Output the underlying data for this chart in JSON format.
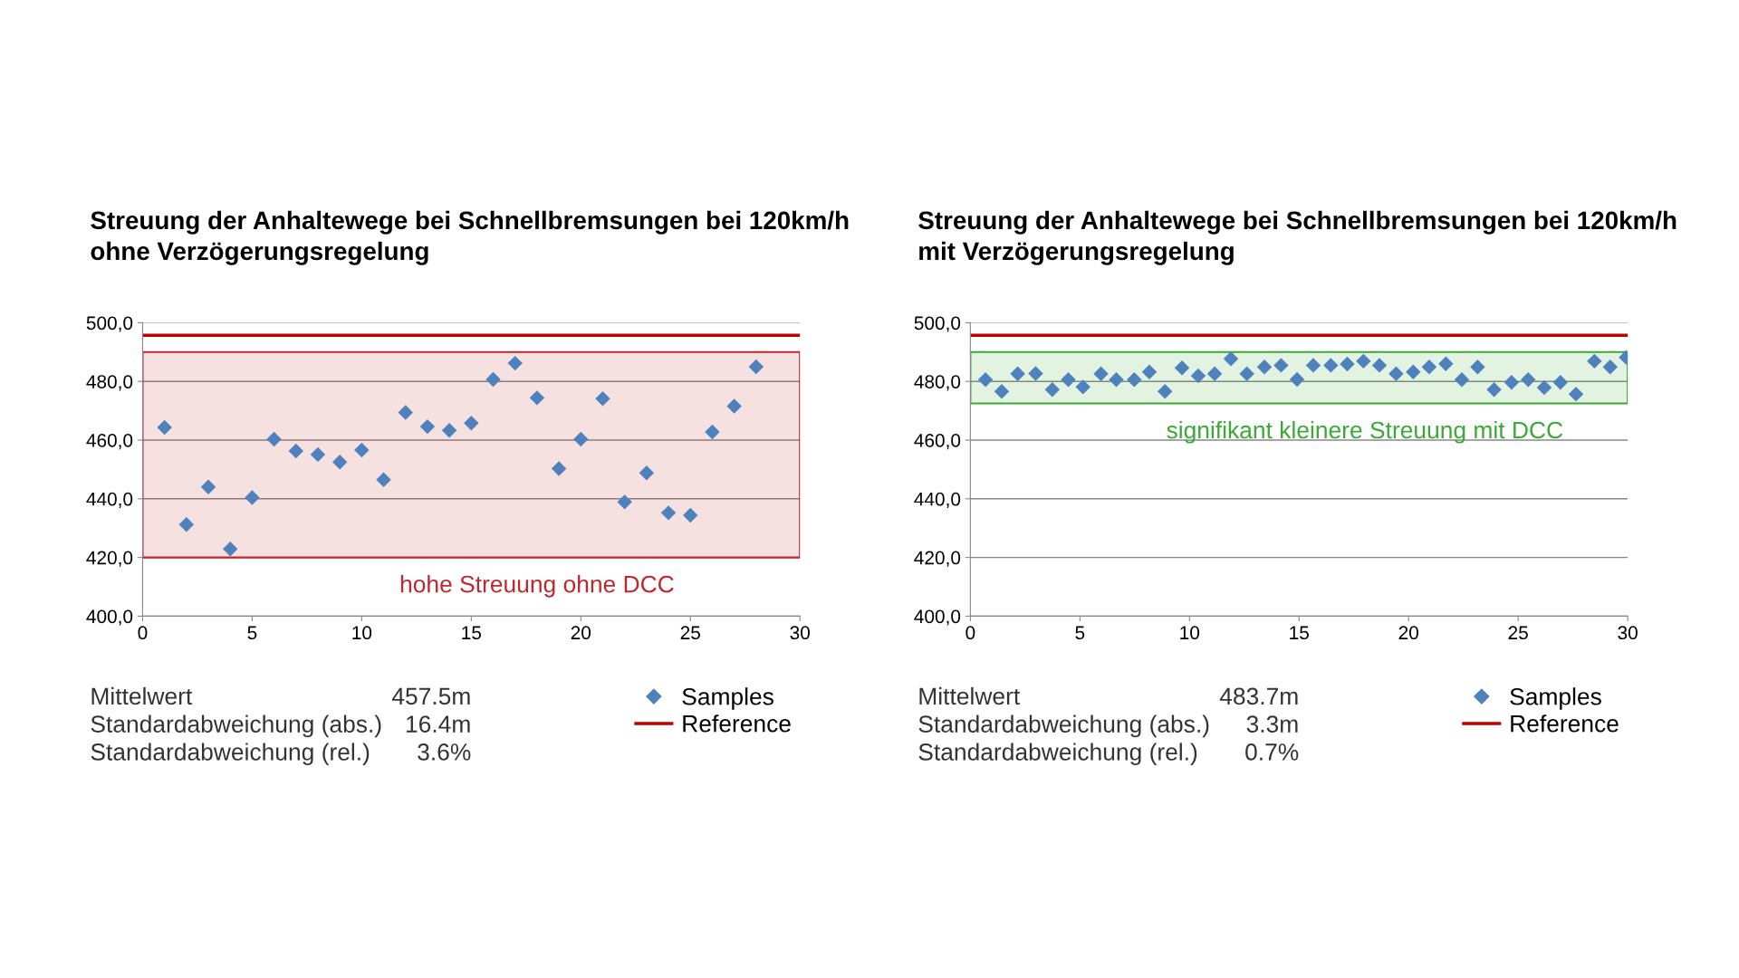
{
  "chart_data": [
    {
      "type": "scatter",
      "title": "Streuung der Anhaltewege bei Schnellbremsungen bei 120km/h\nohne Verzögerungsregelung",
      "x": [
        1,
        2,
        3,
        4,
        5,
        6,
        7,
        8,
        9,
        10,
        11,
        12,
        13,
        14,
        15,
        16,
        17,
        18,
        19,
        20,
        21,
        22,
        23,
        24,
        25,
        26,
        27,
        28
      ],
      "series": [
        {
          "name": "Samples",
          "color": "#4f81bd",
          "values": [
            464.3,
            431.2,
            444.0,
            422.9,
            440.4,
            460.3,
            456.3,
            455.1,
            452.5,
            456.6,
            446.5,
            469.4,
            464.6,
            463.3,
            465.8,
            480.7,
            486.2,
            474.4,
            450.3,
            460.3,
            474.1,
            438.9,
            448.8,
            435.2,
            434.4,
            462.8,
            471.6,
            485.0
          ]
        }
      ],
      "marker": "diamond",
      "xlim": [
        0,
        30
      ],
      "xticks": [
        0,
        5,
        10,
        15,
        20,
        25,
        30
      ],
      "ylim": [
        400,
        500
      ],
      "yticks": [
        {
          "value": 400,
          "label": "400,0"
        },
        {
          "value": 420,
          "label": "420,0"
        },
        {
          "value": 440,
          "label": "440,0"
        },
        {
          "value": 460,
          "label": "460,0"
        },
        {
          "value": 480,
          "label": "480,0"
        },
        {
          "value": 500,
          "label": "500,0"
        }
      ],
      "grid": "y",
      "legend": "bottom right",
      "ref_lines": [
        {
          "axis": "y",
          "value": 495.7,
          "label": "Reference",
          "color": "#c00000"
        }
      ],
      "bands": [
        {
          "axis": "y",
          "from": 420,
          "to": 490,
          "label": "hohe Streuung ohne DCC",
          "color": "#c0272d"
        }
      ],
      "annotations": [
        "Mittelwert",
        "457.5m",
        "Standardabweichung (abs.)",
        "16.4m",
        "Standardabweichung (rel.)",
        "3.6%"
      ]
    },
    {
      "type": "scatter",
      "title": "Streuung der Anhaltewege bei Schnellbremsungen bei 120km/h\nmit Verzögerungsregelung",
      "x": [
        0.69,
        1.43,
        2.16,
        2.98,
        3.74,
        4.47,
        5.14,
        5.96,
        6.66,
        7.48,
        8.17,
        8.88,
        9.66,
        10.4,
        11.15,
        11.89,
        12.62,
        13.42,
        14.18,
        14.91,
        15.65,
        16.45,
        17.2,
        17.94,
        18.67,
        19.43,
        20.21,
        20.94,
        21.7,
        22.43,
        23.15,
        23.9,
        24.7,
        25.46,
        26.19,
        26.93,
        27.64,
        28.48,
        29.2,
        29.93
      ],
      "series": [
        {
          "name": "Samples",
          "color": "#4f81bd",
          "values": [
            480.6,
            476.6,
            482.6,
            482.7,
            477.2,
            480.6,
            478.1,
            482.6,
            480.6,
            480.6,
            483.2,
            476.6,
            484.6,
            481.9,
            482.6,
            487.7,
            482.6,
            484.9,
            485.5,
            480.7,
            485.5,
            485.5,
            485.9,
            486.9,
            485.5,
            482.6,
            483.2,
            484.9,
            486.0,
            480.6,
            484.9,
            477.2,
            479.7,
            480.6,
            477.9,
            479.7,
            475.7,
            486.9,
            484.9,
            488.2
          ]
        }
      ],
      "marker": "diamond",
      "xlim": [
        0,
        30
      ],
      "xticks": [
        0,
        5,
        10,
        15,
        20,
        25,
        30
      ],
      "ylim": [
        400,
        500
      ],
      "yticks": [
        {
          "value": 400,
          "label": "400,0"
        },
        {
          "value": 420,
          "label": "420,0"
        },
        {
          "value": 440,
          "label": "440,0"
        },
        {
          "value": 460,
          "label": "460,0"
        },
        {
          "value": 480,
          "label": "480,0"
        },
        {
          "value": 500,
          "label": "500,0"
        }
      ],
      "grid": "y",
      "legend": "bottom right",
      "ref_lines": [
        {
          "axis": "y",
          "value": 495.7,
          "label": "Reference",
          "color": "#c00000"
        }
      ],
      "bands": [
        {
          "axis": "y",
          "from": 472.5,
          "to": 490,
          "label": "signifikant kleinere Streuung mit DCC",
          "color": "#3aa935"
        }
      ],
      "annotations": [
        "Mittelwert",
        "483.7m",
        "Standardabweichung (abs.)",
        "3.3m",
        "Standardabweichung (rel.)",
        "0.7%"
      ]
    }
  ]
}
